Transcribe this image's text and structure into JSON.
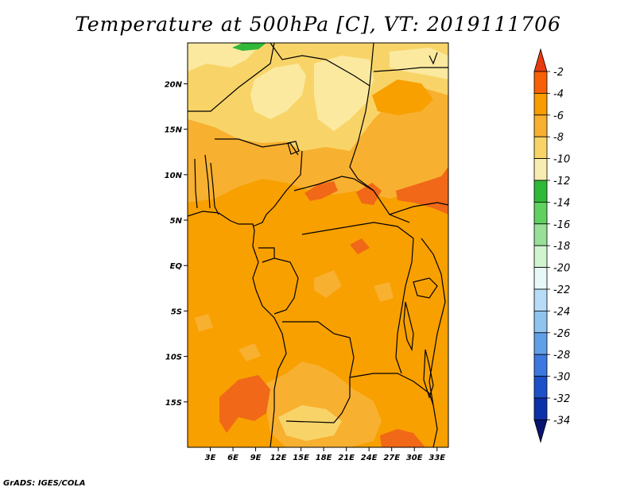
{
  "title": "Temperature at 500hPa [C], VT: 2019111706",
  "credit": "GrADS: IGES/COLA",
  "map": {
    "lon_range": [
      0,
      34.5
    ],
    "lat_range": [
      -20,
      24.5
    ],
    "lat_ticks": [
      {
        "value": 20,
        "label": "20N"
      },
      {
        "value": 15,
        "label": "15N"
      },
      {
        "value": 10,
        "label": "10N"
      },
      {
        "value": 5,
        "label": "5N"
      },
      {
        "value": 0,
        "label": "EQ"
      },
      {
        "value": -5,
        "label": "5S"
      },
      {
        "value": -10,
        "label": "10S"
      },
      {
        "value": -15,
        "label": "15S"
      }
    ],
    "lon_ticks": [
      {
        "value": 3,
        "label": "3E"
      },
      {
        "value": 6,
        "label": "6E"
      },
      {
        "value": 9,
        "label": "9E"
      },
      {
        "value": 12,
        "label": "12E"
      },
      {
        "value": 15,
        "label": "15E"
      },
      {
        "value": 18,
        "label": "18E"
      },
      {
        "value": 21,
        "label": "21E"
      },
      {
        "value": 24,
        "label": "24E"
      },
      {
        "value": 27,
        "label": "27E"
      },
      {
        "value": 30,
        "label": "30E"
      },
      {
        "value": 33,
        "label": "33E"
      }
    ]
  },
  "colorbar": {
    "labels": [
      "-2",
      "-4",
      "-6",
      "-8",
      "-10",
      "-12",
      "-14",
      "-16",
      "-18",
      "-20",
      "-22",
      "-24",
      "-26",
      "-28",
      "-30",
      "-32",
      "-34"
    ],
    "colors": [
      "#e83c10",
      "#f86008",
      "#f89c00",
      "#f8b030",
      "#f8d468",
      "#f8ecb0",
      "#30b838",
      "#60d060",
      "#98e098",
      "#d0f4d0",
      "#e8f8f8",
      "#b8dcf8",
      "#90c4f0",
      "#60a0e8",
      "#3c78e0",
      "#1c50c8",
      "#0c30a8",
      "#081470"
    ]
  },
  "colors": {
    "base_orange": "#f8a000",
    "light_orange": "#f8b030",
    "pale_yellow": "#f8d468",
    "very_pale": "#fbe9a0",
    "red_orange": "#f06818",
    "green": "#30b838"
  }
}
